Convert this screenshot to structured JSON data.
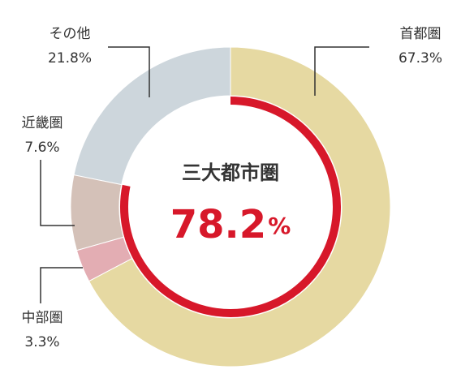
{
  "chart_data": {
    "type": "donut",
    "categories": [
      "首都圏",
      "中部圏",
      "近畿圏",
      "その他"
    ],
    "values": [
      67.3,
      3.3,
      7.6,
      21.8
    ],
    "value_labels": [
      "67.3%",
      "3.3%",
      "7.6%",
      "21.8%"
    ],
    "colors": [
      "#e6d9a2",
      "#e3adb3",
      "#d4c1b8",
      "#cdd6dc"
    ],
    "highlight": {
      "label": "三大都市圏",
      "value": 78.2,
      "unit": "%",
      "color": "#d7182a"
    }
  }
}
